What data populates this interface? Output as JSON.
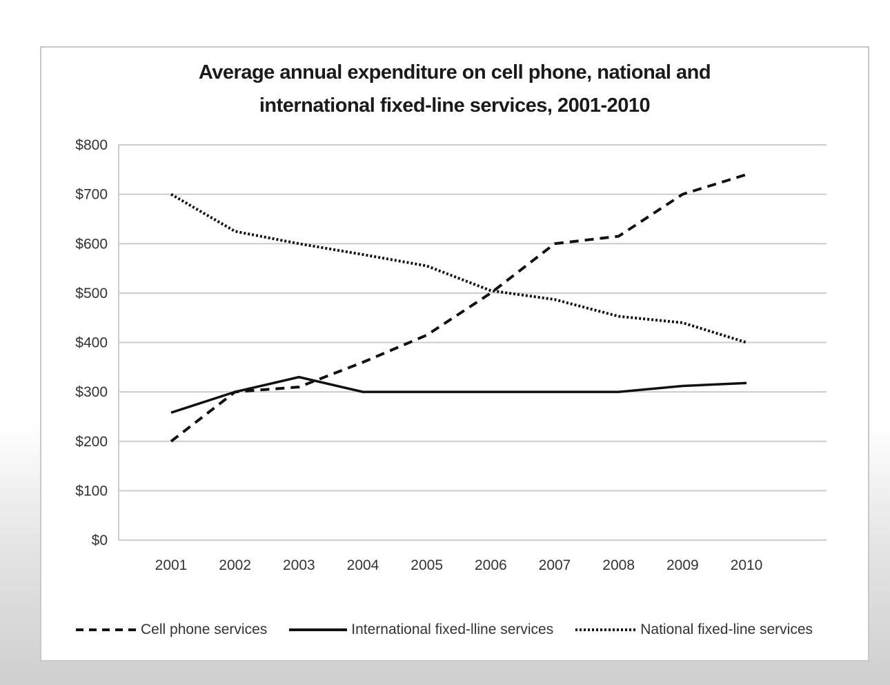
{
  "chart_data": {
    "type": "line",
    "title_line1": "Average annual expenditure on cell phone, national and",
    "title_line2": "international fixed-line services, 2001-2010",
    "x": [
      "2001",
      "2002",
      "2003",
      "2004",
      "2005",
      "2006",
      "2007",
      "2008",
      "2009",
      "2010"
    ],
    "y_ticks": [
      "$0",
      "$100",
      "$200",
      "$300",
      "$400",
      "$500",
      "$600",
      "$700",
      "$800"
    ],
    "ylim": [
      0,
      800
    ],
    "grid": true,
    "legend_position": "bottom",
    "series": [
      {
        "name": "Cell phone services",
        "style": "dashed",
        "values": [
          200,
          300,
          310,
          360,
          415,
          500,
          600,
          615,
          700,
          740
        ]
      },
      {
        "name": "International fixed-lline services",
        "style": "solid",
        "values": [
          258,
          300,
          330,
          300,
          300,
          300,
          300,
          300,
          312,
          318
        ]
      },
      {
        "name": "National fixed-line services",
        "style": "dotted",
        "values": [
          700,
          625,
          600,
          578,
          555,
          505,
          487,
          453,
          440,
          400
        ]
      }
    ],
    "colors": {
      "line": "#111111",
      "grid": "#cccccc",
      "axis_text": "#333333"
    }
  }
}
